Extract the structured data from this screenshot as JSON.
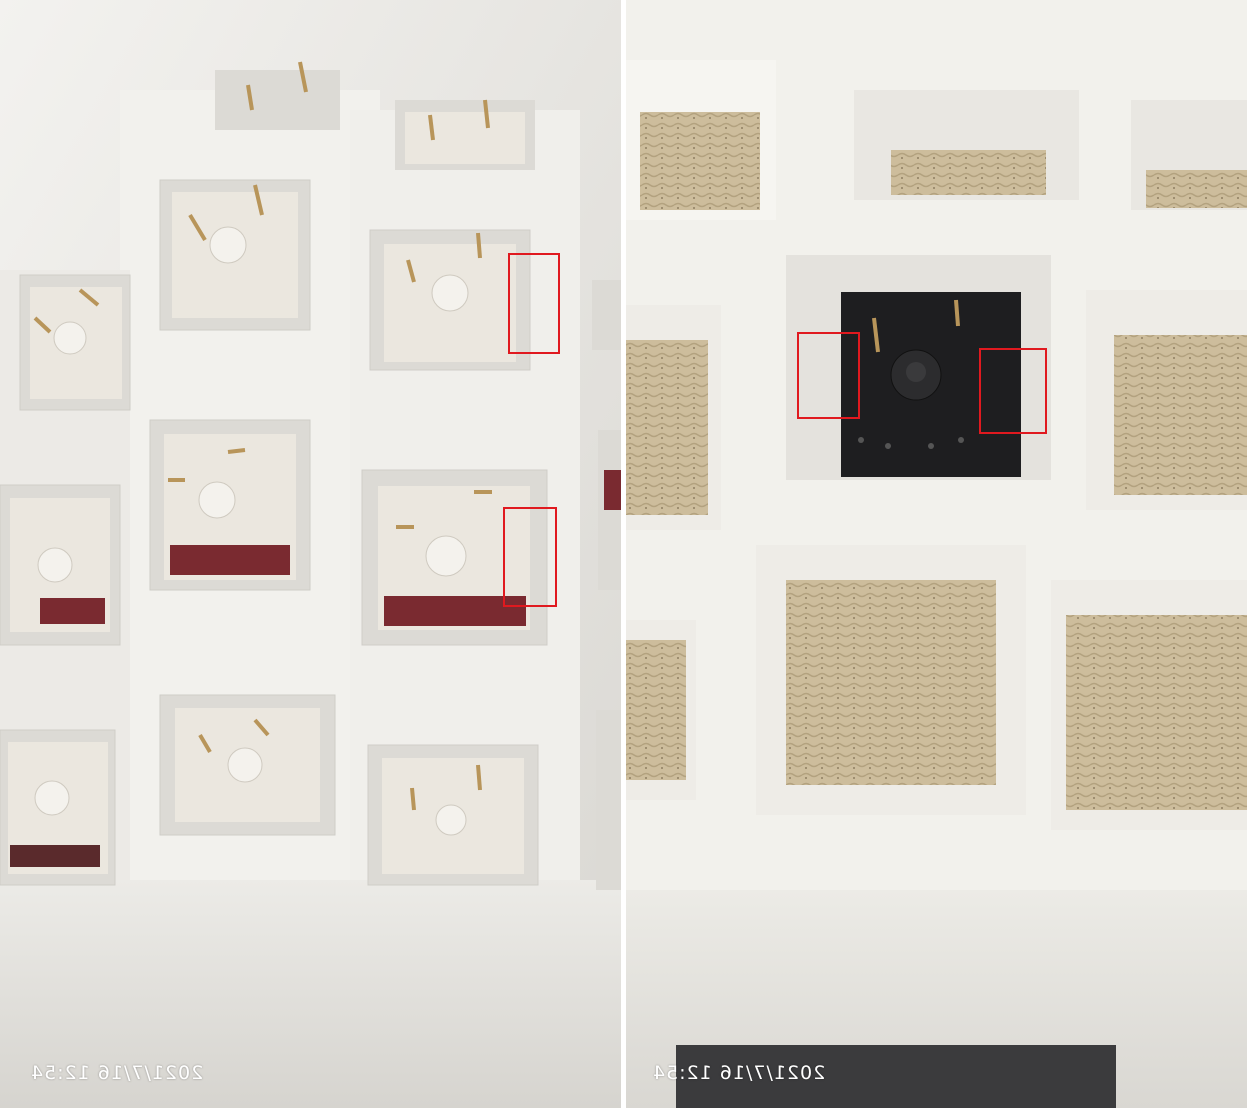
{
  "photos": {
    "left": {
      "timestamp": "2021/7/16 12:54",
      "highlight_color": "#e0191f",
      "subject": "white plate with cream/maroon switches",
      "highlight_count": 2
    },
    "right": {
      "timestamp": "2021/7/16 12:54",
      "highlight_color": "#e0191f",
      "subject": "white plate with one black switch",
      "highlight_count": 2
    }
  },
  "colors": {
    "plate": "#f1efea",
    "switch_housing": "#ebe7df",
    "switch_maroon": "#7a2a30",
    "switch_black": "#1e1e20",
    "carpet": "#c9b896"
  }
}
